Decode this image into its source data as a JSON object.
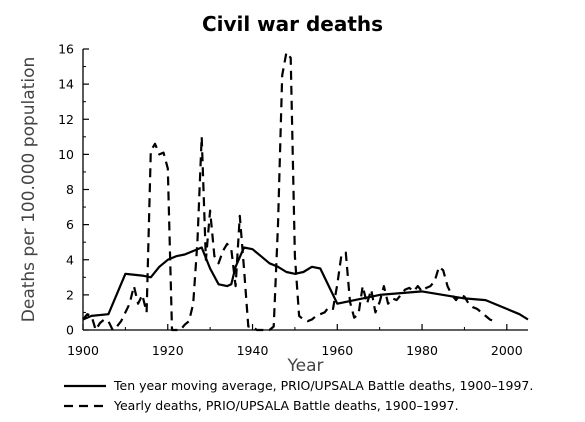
{
  "chart_data": {
    "type": "line",
    "title": "Civil war deaths",
    "xlabel": "Year",
    "ylabel": "Deaths per 100.000 population",
    "xlim": [
      1900,
      2005
    ],
    "ylim": [
      0,
      16
    ],
    "xticks": [
      1900,
      1920,
      1940,
      1960,
      1980,
      2000
    ],
    "yticks": [
      0,
      2,
      4,
      6,
      8,
      10,
      12,
      14,
      16
    ],
    "grid": false,
    "legend_position": "bottom",
    "series": [
      {
        "name": "Ten year moving average, PRIO/UPSALA Battle deaths, 1900–1997.",
        "style": "solid",
        "x": [
          1900,
          1902,
          1906,
          1910,
          1914,
          1916,
          1918,
          1920,
          1922,
          1924,
          1926,
          1928,
          1930,
          1932,
          1934,
          1935,
          1936,
          1938,
          1940,
          1942,
          1944,
          1946,
          1948,
          1950,
          1952,
          1954,
          1956,
          1958,
          1960,
          1962,
          1966,
          1970,
          1975,
          1980,
          1985,
          1990,
          1995,
          2000,
          2003,
          2005
        ],
        "y": [
          0.6,
          0.8,
          0.9,
          3.2,
          3.1,
          3.0,
          3.6,
          4.0,
          4.2,
          4.3,
          4.5,
          4.7,
          3.5,
          2.6,
          2.5,
          2.6,
          3.6,
          4.7,
          4.6,
          4.2,
          3.8,
          3.6,
          3.3,
          3.2,
          3.3,
          3.6,
          3.5,
          2.5,
          1.5,
          1.6,
          1.8,
          2.0,
          2.1,
          2.2,
          2.0,
          1.8,
          1.7,
          1.2,
          0.9,
          0.6
        ]
      },
      {
        "name": "Yearly deaths, PRIO/UPSALA Battle deaths, 1900–1997.",
        "style": "dashed",
        "x": [
          1900,
          1901,
          1902,
          1903,
          1904,
          1905,
          1906,
          1907,
          1908,
          1909,
          1910,
          1911,
          1912,
          1913,
          1914,
          1915,
          1916,
          1917,
          1918,
          1919,
          1920,
          1921,
          1922,
          1923,
          1924,
          1925,
          1926,
          1927,
          1928,
          1929,
          1930,
          1931,
          1932,
          1933,
          1934,
          1935,
          1936,
          1937,
          1938,
          1939,
          1940,
          1941,
          1942,
          1943,
          1944,
          1945,
          1946,
          1947,
          1948,
          1949,
          1950,
          1951,
          1952,
          1953,
          1954,
          1955,
          1956,
          1957,
          1958,
          1959,
          1960,
          1961,
          1962,
          1963,
          1964,
          1965,
          1966,
          1967,
          1968,
          1969,
          1970,
          1971,
          1972,
          1973,
          1974,
          1975,
          1976,
          1977,
          1978,
          1979,
          1980,
          1981,
          1982,
          1983,
          1984,
          1985,
          1986,
          1987,
          1988,
          1989,
          1990,
          1991,
          1992,
          1993,
          1994,
          1995,
          1996,
          1997
        ],
        "y": [
          0.6,
          0.9,
          0.8,
          0.0,
          0.4,
          0.6,
          0.5,
          0.0,
          0.2,
          0.5,
          1.0,
          1.5,
          2.5,
          1.5,
          2.0,
          1.0,
          10.2,
          10.6,
          10.0,
          10.1,
          9.2,
          0.0,
          0.0,
          0.0,
          0.3,
          0.5,
          1.5,
          5.0,
          11.0,
          4.0,
          6.8,
          4.2,
          3.8,
          4.5,
          4.9,
          4.6,
          2.5,
          6.5,
          3.5,
          0.2,
          0.2,
          0.0,
          0.0,
          0.0,
          0.0,
          0.2,
          6.0,
          14.5,
          15.8,
          15.5,
          4.2,
          0.8,
          0.6,
          0.5,
          0.6,
          0.8,
          0.9,
          1.0,
          1.3,
          1.2,
          2.6,
          4.3,
          4.4,
          1.6,
          0.7,
          0.9,
          2.5,
          1.5,
          2.3,
          1.0,
          1.6,
          2.5,
          1.5,
          1.8,
          1.7,
          2.0,
          2.3,
          2.4,
          2.2,
          2.5,
          2.2,
          2.4,
          2.5,
          2.8,
          3.6,
          3.4,
          2.5,
          2.0,
          1.7,
          2.0,
          1.9,
          1.5,
          1.3,
          1.2,
          1.0,
          0.8,
          0.6,
          0.5
        ]
      }
    ]
  }
}
